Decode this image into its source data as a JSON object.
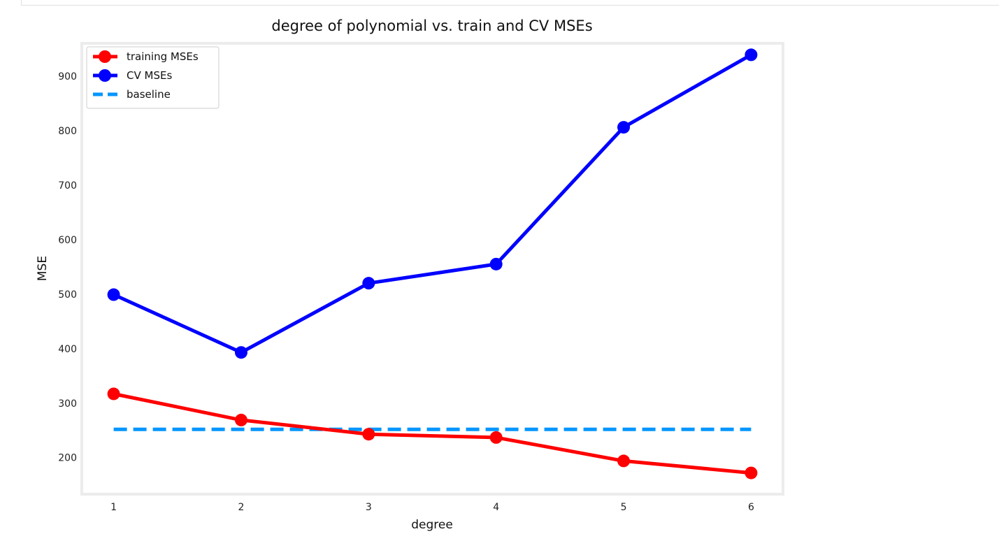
{
  "chart_data": {
    "type": "line",
    "title": "degree of polynomial vs. train and CV MSEs",
    "xlabel": "degree",
    "ylabel": "MSE",
    "x": [
      1,
      2,
      3,
      4,
      5,
      6
    ],
    "xticks": [
      "1",
      "2",
      "3",
      "4",
      "5",
      "6"
    ],
    "yticks": [
      200,
      300,
      400,
      500,
      600,
      700,
      800,
      900
    ],
    "xlim": [
      0.75,
      6.25
    ],
    "ylim": [
      133,
      960
    ],
    "grid": false,
    "legend_position": "top-left",
    "series": [
      {
        "name": "training MSEs",
        "color": "#ff0000",
        "marker": "circle",
        "style": "solid",
        "values": [
          317,
          269,
          243,
          237,
          194,
          172
        ]
      },
      {
        "name": "CV MSEs",
        "color": "#0000ff",
        "marker": "circle",
        "style": "solid",
        "values": [
          499,
          393,
          520,
          555,
          806,
          939
        ]
      },
      {
        "name": "baseline",
        "color": "#0096ff",
        "marker": "none",
        "style": "dashed",
        "values": [
          252,
          252,
          252,
          252,
          252,
          252
        ]
      }
    ]
  }
}
